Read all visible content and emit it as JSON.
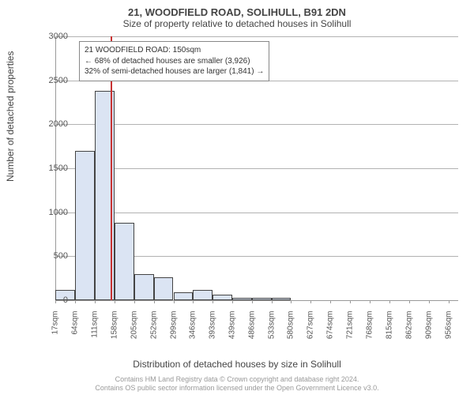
{
  "title": "21, WOODFIELD ROAD, SOLIHULL, B91 2DN",
  "subtitle": "Size of property relative to detached houses in Solihull",
  "y_axis_label": "Number of detached properties",
  "x_axis_label": "Distribution of detached houses by size in Solihull",
  "attribution_line1": "Contains HM Land Registry data © Crown copyright and database right 2024.",
  "attribution_line2": "Contains OS public sector information licensed under the Open Government Licence v3.0.",
  "chart": {
    "type": "histogram",
    "background_color": "#ffffff",
    "grid_color": "#555555",
    "axis_color": "#999999",
    "bar_fill": "#dbe4f3",
    "bar_stroke": "#444444",
    "reference_line_color": "#c83232",
    "ylim": [
      0,
      3000
    ],
    "ytick_step": 500,
    "yticks": [
      0,
      500,
      1000,
      1500,
      2000,
      2500,
      3000
    ],
    "x_min": 17,
    "x_max": 979,
    "bin_width": 47,
    "xtick_positions": [
      17,
      64,
      111,
      158,
      205,
      252,
      299,
      346,
      393,
      439,
      486,
      533,
      580,
      627,
      674,
      721,
      768,
      815,
      862,
      909,
      956
    ],
    "xtick_labels": [
      "17sqm",
      "64sqm",
      "111sqm",
      "158sqm",
      "205sqm",
      "252sqm",
      "299sqm",
      "346sqm",
      "393sqm",
      "439sqm",
      "486sqm",
      "533sqm",
      "580sqm",
      "627sqm",
      "674sqm",
      "721sqm",
      "768sqm",
      "815sqm",
      "862sqm",
      "909sqm",
      "956sqm"
    ],
    "values": [
      120,
      1700,
      2380,
      880,
      300,
      260,
      90,
      120,
      60,
      30,
      30,
      30,
      0,
      0,
      0,
      0,
      0,
      0,
      0,
      0
    ],
    "reference_x": 150,
    "annotation": {
      "line1": "21 WOODFIELD ROAD: 150sqm",
      "line2": "← 68% of detached houses are smaller (3,926)",
      "line3": "32% of semi-detached houses are larger (1,841) →"
    },
    "title_fontsize": 13,
    "label_fontsize": 12,
    "tick_fontsize": 11,
    "xtick_fontsize": 10,
    "annot_fontsize": 10
  }
}
